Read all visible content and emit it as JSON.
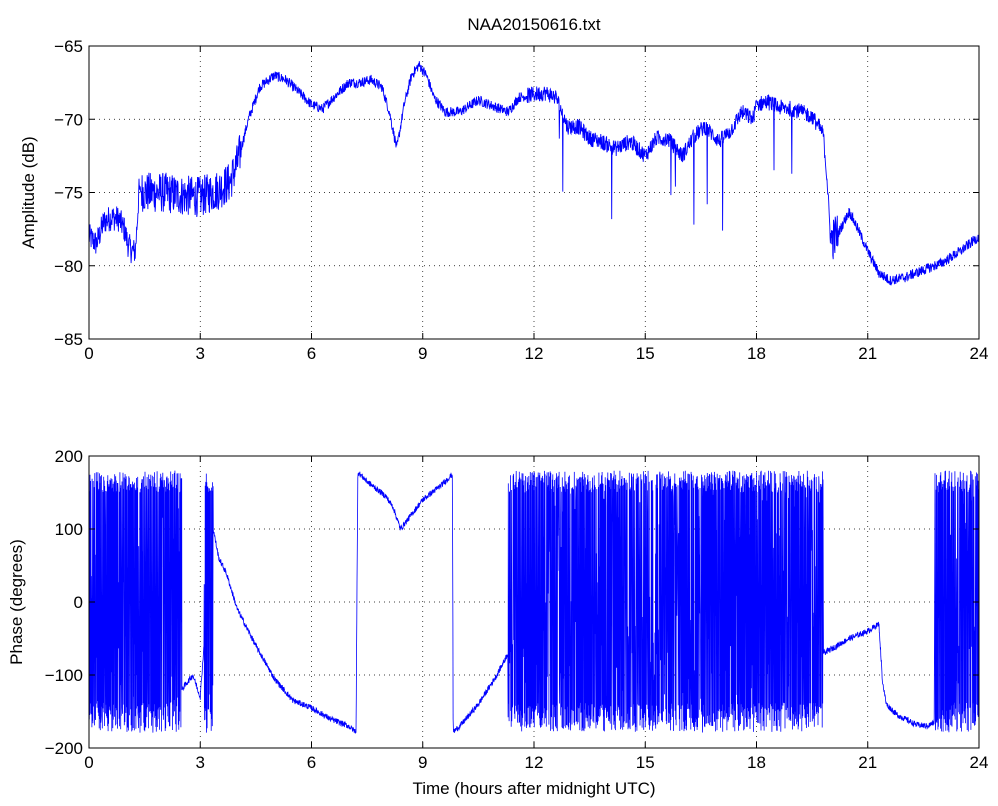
{
  "figure": {
    "title": "NAA20150616.txt",
    "line_color": "#0000ff"
  },
  "chart_data": [
    {
      "type": "line",
      "title": "NAA20150616.txt",
      "xlabel": "",
      "ylabel": "Amplitude (dB)",
      "xlim": [
        0,
        24
      ],
      "ylim": [
        -85,
        -65
      ],
      "xticks": [
        0,
        3,
        6,
        9,
        12,
        15,
        18,
        21,
        24
      ],
      "yticks": [
        -85,
        -80,
        -75,
        -70,
        -65
      ],
      "ytick_labels": [
        "−85",
        "−80",
        "−75",
        "−70",
        "−65"
      ],
      "grid": true,
      "series": [
        {
          "color": "#0000ff",
          "x": [
            0,
            0.2,
            0.4,
            0.6,
            0.8,
            0.95,
            1.05,
            1.15,
            1.25,
            1.3,
            1.35,
            1.5,
            2.0,
            2.5,
            3.0,
            3.5,
            3.8,
            4.0,
            4.3,
            4.6,
            5.0,
            5.3,
            5.6,
            6.0,
            6.3,
            6.6,
            7.0,
            7.3,
            7.6,
            7.9,
            8.1,
            8.3,
            8.5,
            8.7,
            8.9,
            9.1,
            9.3,
            9.6,
            10.0,
            10.5,
            11.0,
            11.3,
            11.6,
            12.0,
            12.3,
            12.6,
            12.9,
            13.2,
            13.5,
            13.8,
            14.2,
            14.6,
            15.0,
            15.3,
            15.6,
            16.0,
            16.3,
            16.6,
            17.0,
            17.3,
            17.6,
            17.9,
            18.0,
            18.3,
            18.6,
            19.0,
            19.5,
            19.8,
            19.9,
            20.0,
            20.2,
            20.5,
            20.7,
            21.0,
            21.3,
            21.6,
            22.0,
            22.5,
            23.0,
            23.5,
            24.0
          ],
          "y": [
            -78,
            -78.5,
            -77,
            -76.7,
            -76.8,
            -77.5,
            -78.5,
            -79,
            -79,
            -77,
            -74.8,
            -75,
            -75,
            -75.2,
            -75.3,
            -74.8,
            -74.3,
            -73,
            -70,
            -67.8,
            -67,
            -67.3,
            -68,
            -69,
            -69.3,
            -68.5,
            -67.5,
            -67.5,
            -67.3,
            -67.8,
            -69.5,
            -72,
            -69,
            -67,
            -66.3,
            -67,
            -68.5,
            -69.5,
            -69.5,
            -68.7,
            -69.2,
            -69.5,
            -68.5,
            -68.3,
            -68.2,
            -68.5,
            -70.5,
            -70.5,
            -71.3,
            -71.5,
            -72,
            -71.5,
            -72.5,
            -71.3,
            -71.3,
            -72.5,
            -71.2,
            -70.5,
            -71.5,
            -70.8,
            -69.5,
            -70,
            -69,
            -68.8,
            -69.2,
            -69.3,
            -69.8,
            -71,
            -74,
            -78.3,
            -77.8,
            -76.3,
            -77.3,
            -79,
            -80.5,
            -81,
            -80.8,
            -80.3,
            -79.8,
            -79,
            -78
          ]
        }
      ]
    },
    {
      "type": "line",
      "title": "",
      "xlabel": "Time (hours after midnight UTC)",
      "ylabel": "Phase (degrees)",
      "xlim": [
        0,
        24
      ],
      "ylim": [
        -200,
        200
      ],
      "xticks": [
        0,
        3,
        6,
        9,
        12,
        15,
        18,
        21,
        24
      ],
      "yticks": [
        -200,
        -100,
        0,
        100,
        200
      ],
      "ytick_labels": [
        "−200",
        "−100",
        "0",
        "100",
        "200"
      ],
      "grid": true,
      "series": [
        {
          "color": "#0000ff",
          "wrap_ranges": [
            [
              0,
              2.5
            ],
            [
              3.1,
              3.35
            ],
            [
              11.3,
              19.8
            ],
            [
              22.8,
              24
            ]
          ],
          "x": [
            2.5,
            2.8,
            3.0,
            3.1,
            3.35,
            3.5,
            3.7,
            4.0,
            4.5,
            5.0,
            5.5,
            6.0,
            6.5,
            7.0,
            7.2,
            7.25,
            7.5,
            8.0,
            8.2,
            8.4,
            8.7,
            9.0,
            9.5,
            9.8,
            9.82,
            10.0,
            10.5,
            11.0,
            11.3,
            19.8,
            20.0,
            20.5,
            21.0,
            21.3,
            21.4,
            21.5,
            21.8,
            22.0,
            22.3,
            22.6,
            22.8
          ],
          "y": [
            -120,
            -100,
            -130,
            -60,
            100,
            60,
            40,
            -10,
            -60,
            -105,
            -135,
            -145,
            -160,
            -170,
            -178,
            178,
            165,
            145,
            130,
            100,
            120,
            140,
            160,
            175,
            -178,
            -170,
            -140,
            -100,
            -70,
            -70,
            -65,
            -50,
            -40,
            -30,
            -110,
            -140,
            -155,
            -160,
            -168,
            -170,
            -165
          ]
        }
      ]
    }
  ]
}
